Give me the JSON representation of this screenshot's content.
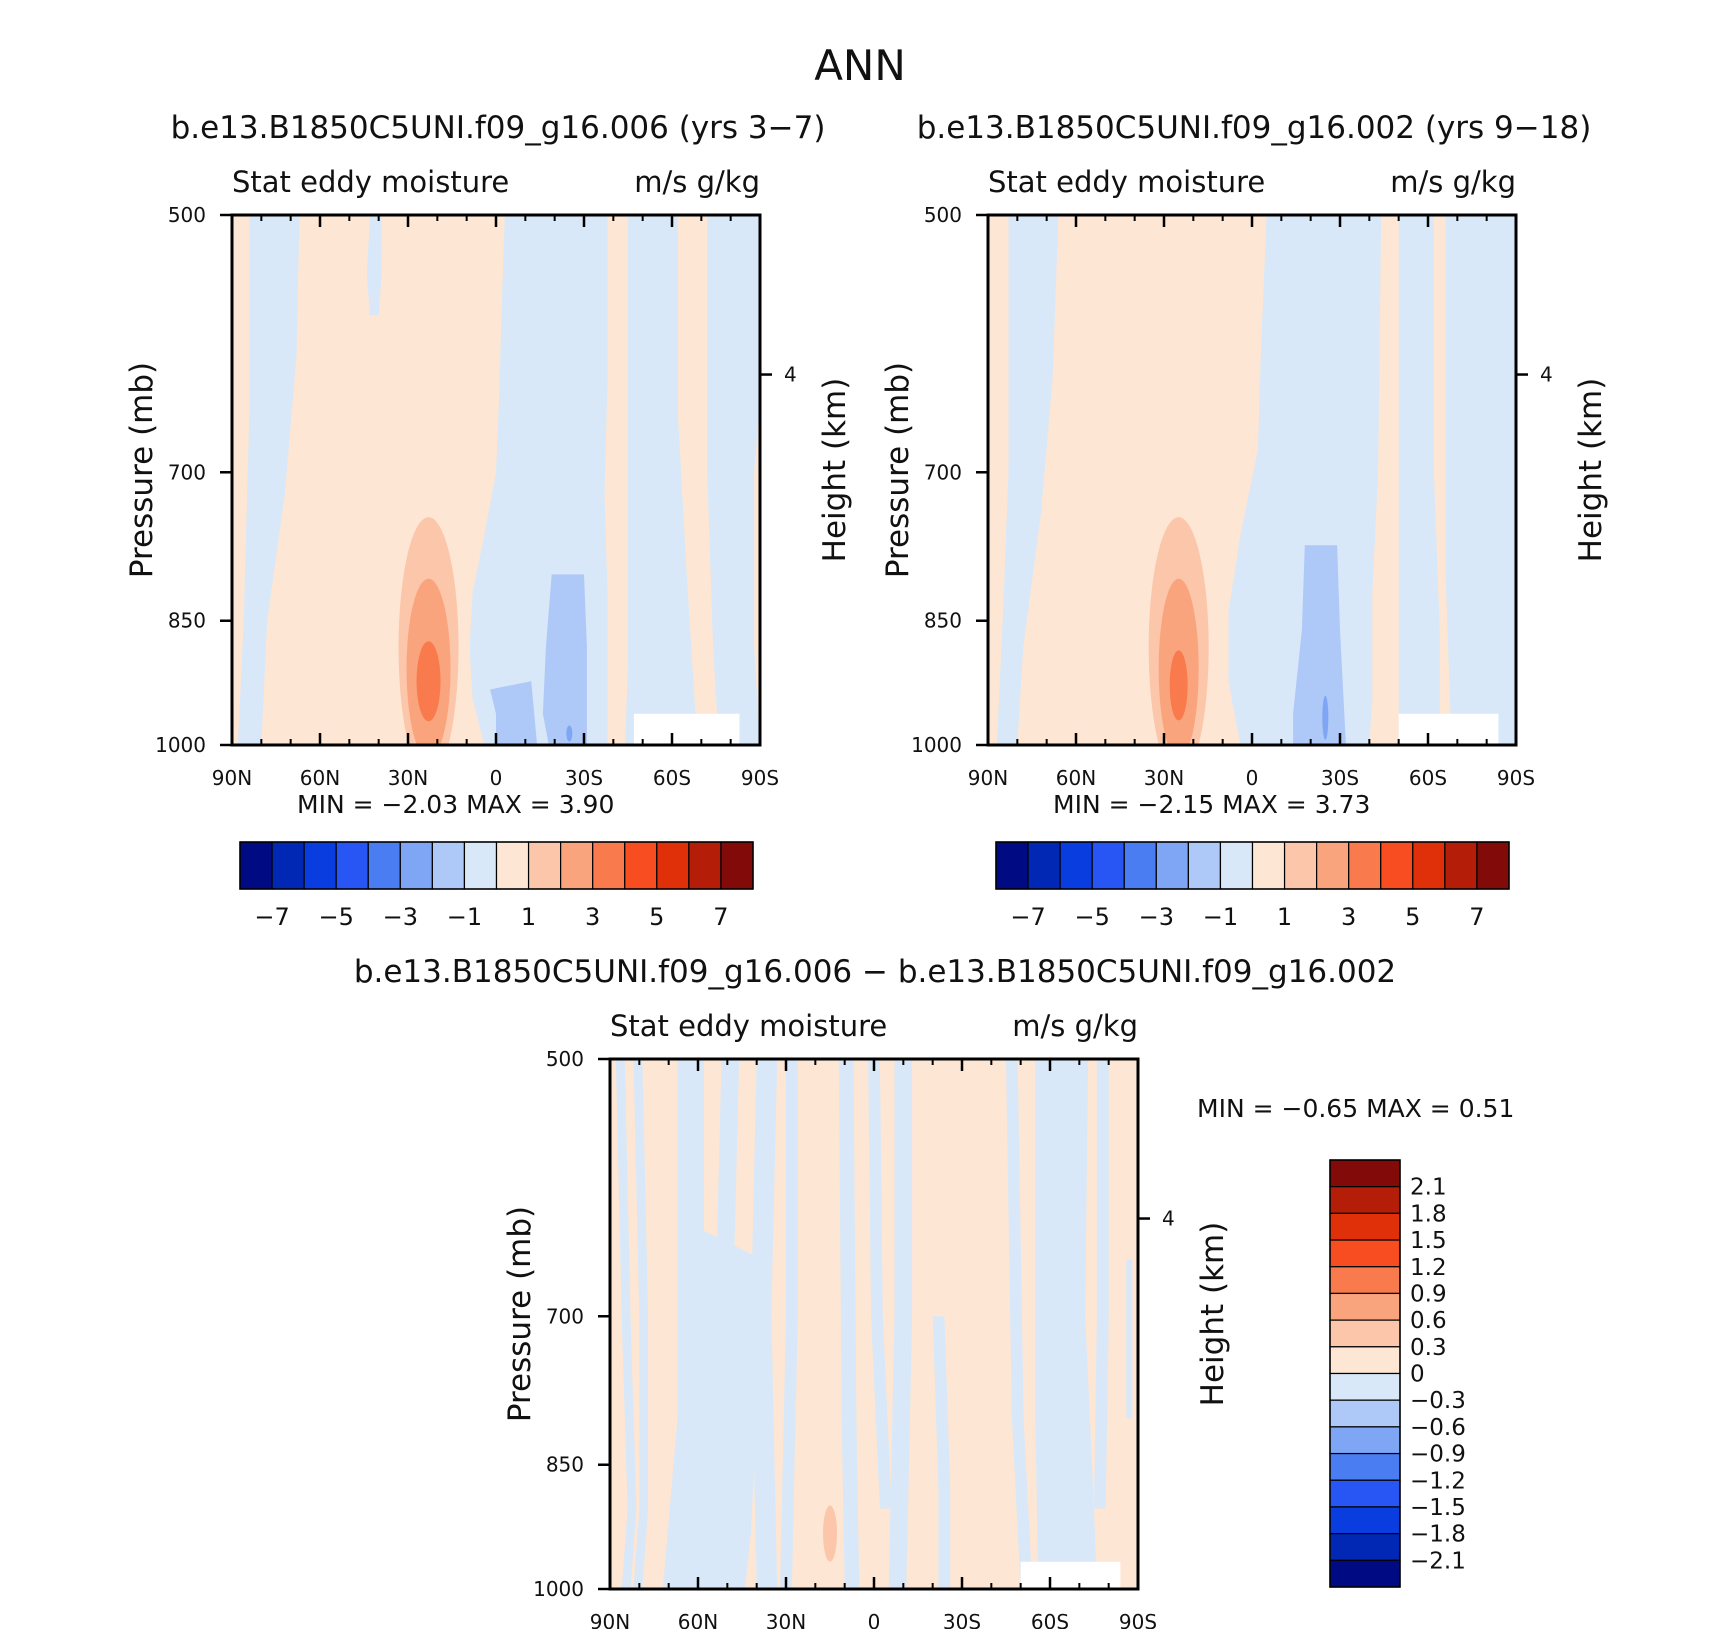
{
  "figure": {
    "title": "ANN"
  },
  "colors": {
    "frame": "#000000",
    "missing": "#ffffff",
    "abs_scale": [
      "#000a82",
      "#0028b4",
      "#0a3de0",
      "#2856f5",
      "#4a7cf2",
      "#7ea6f5",
      "#aec8f8",
      "#d8e8f8",
      "#fde6d4",
      "#fcc6aa",
      "#faa47e",
      "#f97a4d",
      "#f84d21",
      "#e0300a",
      "#b41e08",
      "#820a08"
    ],
    "diff_scale": [
      "#000a82",
      "#0028b4",
      "#0a3de0",
      "#2856f5",
      "#4a7cf2",
      "#7ea6f5",
      "#aec8f8",
      "#d8e8f8",
      "#fde6d4",
      "#fcc6aa",
      "#faa47e",
      "#f97a4d",
      "#f84d21",
      "#e0300a",
      "#b41e08",
      "#820a08"
    ]
  },
  "panels": [
    {
      "id": "case1",
      "title": "b.e13.B1850C5UNI.f09_g16.006 (yrs 3-7)",
      "left_label": "Stat eddy moisture",
      "right_label": "m/s g/kg",
      "ylabel": "Pressure (mb)",
      "y2label": "Height (km)",
      "min_label": "MIN =",
      "min_value": "-2.03",
      "max_label": "MAX =",
      "max_value": "3.90"
    },
    {
      "id": "case2",
      "title": "b.e13.B1850C5UNI.f09_g16.002 (yrs 9-18)",
      "left_label": "Stat eddy moisture",
      "right_label": "m/s g/kg",
      "ylabel": "Pressure (mb)",
      "y2label": "Height (km)",
      "min_label": "MIN =",
      "min_value": "-2.15",
      "max_label": "MAX =",
      "max_value": "3.73"
    },
    {
      "id": "diff",
      "title": "b.e13.B1850C5UNI.f09_g16.006 - b.e13.B1850C5UNI.f09_g16.002",
      "left_label": "Stat eddy moisture",
      "right_label": "m/s g/kg",
      "ylabel": "Pressure (mb)",
      "y2label": "Height (km)",
      "min_label": "MIN =",
      "min_value": "-0.65",
      "max_label": "MAX =",
      "max_value": "0.51"
    }
  ],
  "chart_data": [
    {
      "type": "heatmap",
      "panel": "case1",
      "x": [
        "90N",
        "60N",
        "30N",
        "0",
        "30S",
        "60S",
        "90S"
      ],
      "x_values": [
        90,
        60,
        30,
        0,
        -30,
        -60,
        -90
      ],
      "y": [
        "500",
        "700",
        "850",
        "1000"
      ],
      "y_values": [
        500,
        700,
        850,
        1000
      ],
      "y2": [
        "4"
      ],
      "y2_values_km": [
        4
      ],
      "y_scale": "log",
      "ylim": [
        1000,
        500
      ],
      "xlim": [
        90,
        -90
      ],
      "grid": false,
      "colorbar": {
        "orientation": "horizontal",
        "tick_labels": [
          "-7",
          "-5",
          "-3",
          "-1",
          "1",
          "3",
          "5",
          "7"
        ],
        "levels": [
          -7,
          -6,
          -5,
          -4,
          -3,
          -2,
          -1,
          0,
          1,
          2,
          3,
          4,
          5,
          6,
          7
        ]
      },
      "min": -2.03,
      "max": 3.9,
      "features": [
        {
          "lat": 23,
          "p": 930,
          "value": 3.9
        },
        {
          "lat": 0,
          "p": 900,
          "value": -0.9
        },
        {
          "lat": -25,
          "p": 900,
          "value": -2.03
        }
      ]
    },
    {
      "type": "heatmap",
      "panel": "case2",
      "x": [
        "90N",
        "60N",
        "30N",
        "0",
        "30S",
        "60S",
        "90S"
      ],
      "x_values": [
        90,
        60,
        30,
        0,
        -30,
        -60,
        -90
      ],
      "y": [
        "500",
        "700",
        "850",
        "1000"
      ],
      "y_values": [
        500,
        700,
        850,
        1000
      ],
      "y2": [
        "4"
      ],
      "y2_values_km": [
        4
      ],
      "y_scale": "log",
      "ylim": [
        1000,
        500
      ],
      "xlim": [
        90,
        -90
      ],
      "grid": false,
      "colorbar": {
        "orientation": "horizontal",
        "tick_labels": [
          "-7",
          "-5",
          "-3",
          "-1",
          "1",
          "3",
          "5",
          "7"
        ],
        "levels": [
          -7,
          -6,
          -5,
          -4,
          -3,
          -2,
          -1,
          0,
          1,
          2,
          3,
          4,
          5,
          6,
          7
        ]
      },
      "min": -2.15,
      "max": 3.73,
      "features": [
        {
          "lat": 25,
          "p": 930,
          "value": 3.73
        },
        {
          "lat": -25,
          "p": 950,
          "value": -2.15
        }
      ]
    },
    {
      "type": "heatmap",
      "panel": "diff",
      "x": [
        "90N",
        "60N",
        "30N",
        "0",
        "30S",
        "60S",
        "90S"
      ],
      "x_values": [
        90,
        60,
        30,
        0,
        -30,
        -60,
        -90
      ],
      "y": [
        "500",
        "700",
        "850",
        "1000"
      ],
      "y_values": [
        500,
        700,
        850,
        1000
      ],
      "y2": [
        "4"
      ],
      "y2_values_km": [
        4
      ],
      "y_scale": "log",
      "ylim": [
        1000,
        500
      ],
      "xlim": [
        90,
        -90
      ],
      "grid": false,
      "colorbar": {
        "orientation": "vertical",
        "tick_labels": [
          "2.1",
          "1.8",
          "1.5",
          "1.2",
          "0.9",
          "0.6",
          "0.3",
          "0",
          "-0.3",
          "-0.6",
          "-0.9",
          "-1.2",
          "-1.5",
          "-1.8",
          "-2.1"
        ],
        "levels": [
          2.1,
          1.8,
          1.5,
          1.2,
          0.9,
          0.6,
          0.3,
          0,
          -0.3,
          -0.6,
          -0.9,
          -1.2,
          -1.5,
          -1.8,
          -2.1
        ]
      },
      "min": -0.65,
      "max": 0.51,
      "features": [
        {
          "lat": 15,
          "p": 930,
          "value": 0.51
        },
        {
          "lat": -55,
          "p": 800,
          "value": -0.3
        }
      ]
    }
  ]
}
